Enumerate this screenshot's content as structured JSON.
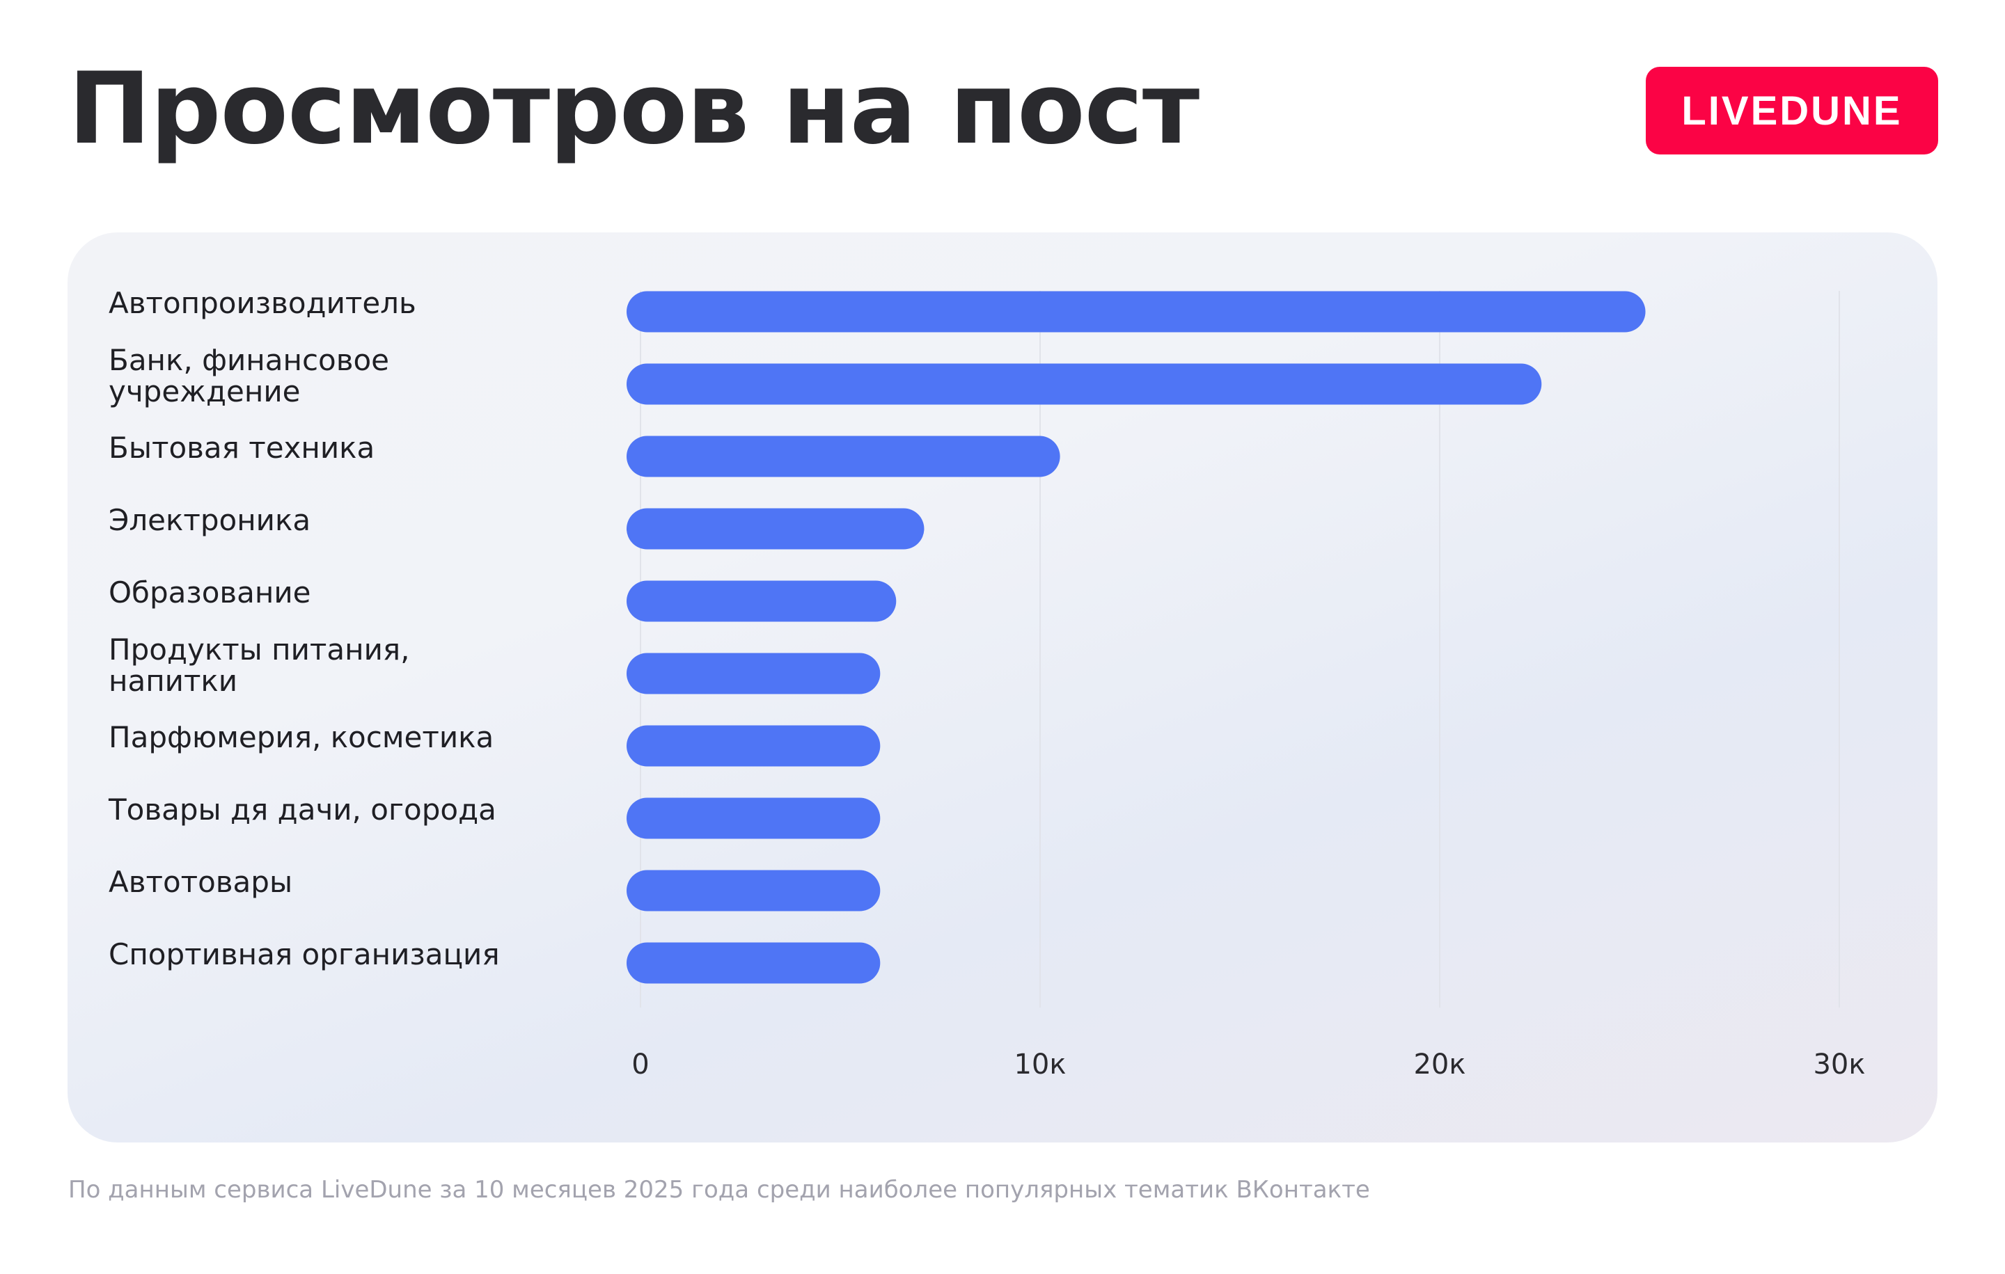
{
  "title": "Просмотров на пост",
  "logo": "LIVEDUNE",
  "footnote": "По данным сервиса LiveDune за 10 месяцев 2025 года среди наиболее популярных тематик ВКонтакте",
  "colors": {
    "bar": "#4f75f5",
    "brand": "#fb0345",
    "grid": "#e1e3ea"
  },
  "chart_data": {
    "type": "bar",
    "orientation": "horizontal",
    "categories": [
      [
        "Автопроизводитель"
      ],
      [
        "Банк, финансовое",
        "учреждение"
      ],
      [
        "Бытовая техника"
      ],
      [
        "Электроника"
      ],
      [
        "Образование"
      ],
      [
        "Продукты питания,",
        "напитки"
      ],
      [
        "Парфюмерия, косметика"
      ],
      [
        "Товары дя дачи, огорода"
      ],
      [
        "Автотовары"
      ],
      [
        "Спортивная организация"
      ]
    ],
    "values": [
      24800,
      22200,
      10150,
      6750,
      6050,
      5650,
      5650,
      5650,
      5650,
      5650
    ],
    "xlim": [
      0,
      30000
    ],
    "xticks": [
      0,
      10000,
      20000,
      30000
    ],
    "xtick_labels": [
      "0",
      "10к",
      "20к",
      "30к"
    ],
    "grid": true,
    "xlabel": "",
    "ylabel": ""
  }
}
